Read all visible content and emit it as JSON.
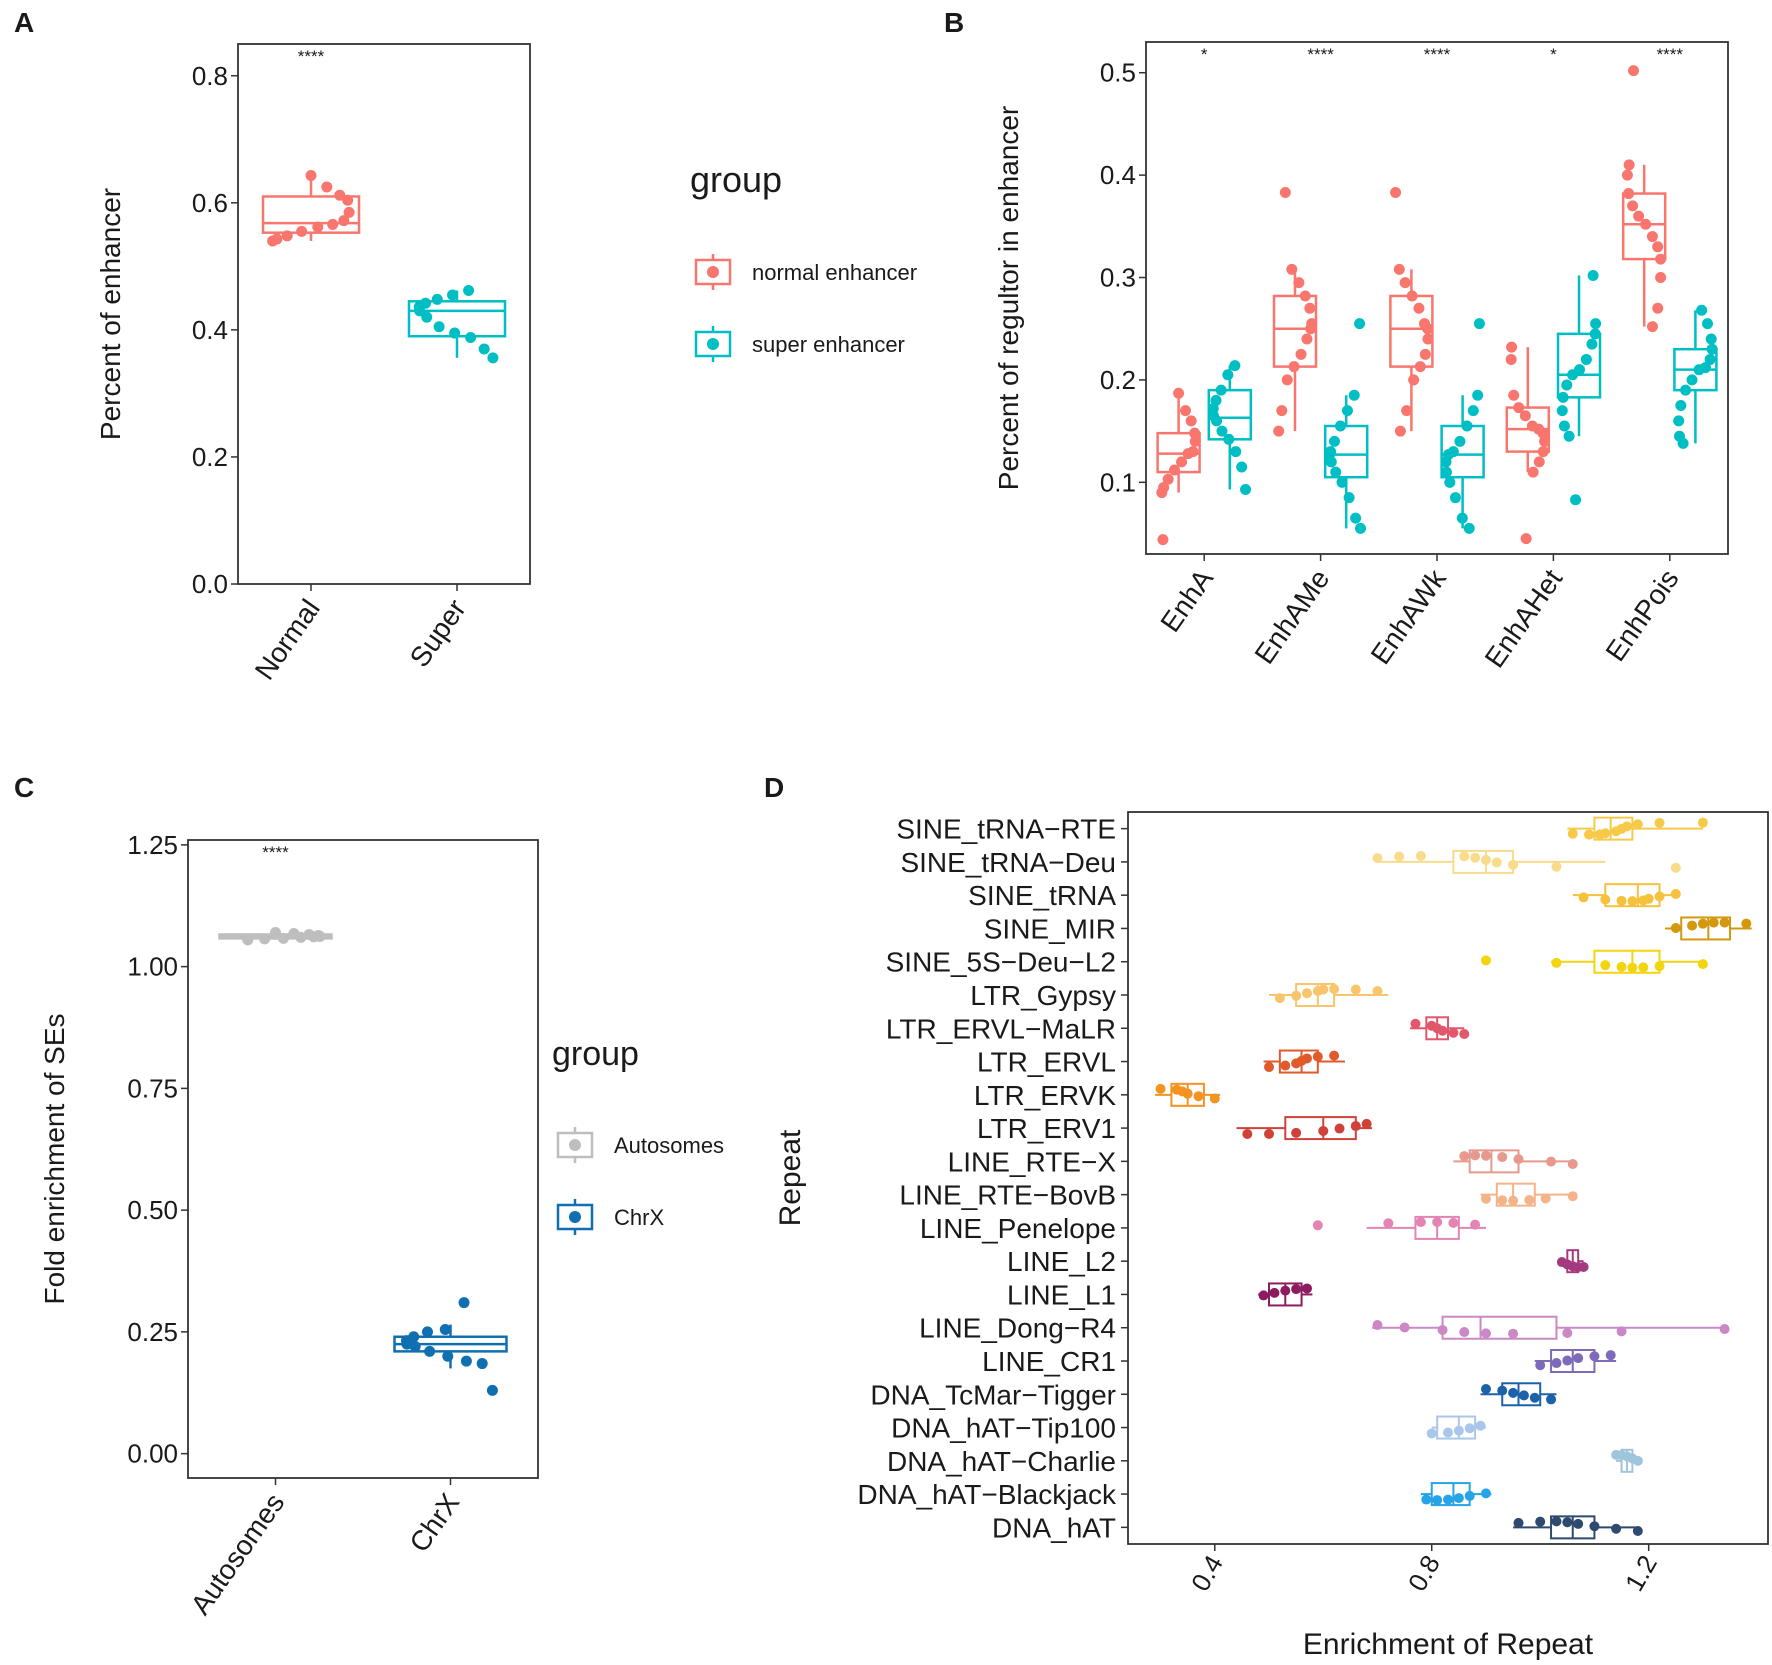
{
  "chart_data": [
    {
      "panel": "A",
      "type": "box",
      "ylabel": "Percent of enhancer",
      "ylim": [
        0,
        0.85
      ],
      "yticks": [
        "0.0",
        "0.2",
        "0.4",
        "0.6",
        "0.8"
      ],
      "ytick_values": [
        0,
        0.2,
        0.4,
        0.6,
        0.8
      ],
      "categories": [
        "Normal",
        "Super"
      ],
      "significance": [
        "****"
      ],
      "legend_title": "group",
      "legend": [
        {
          "label": "normal enhancer",
          "color": "#f8766d"
        },
        {
          "label": "super enhancer",
          "color": "#00bfc4"
        }
      ],
      "boxes": [
        {
          "category": "Normal",
          "group": "normal enhancer",
          "color": "#f8766d",
          "min": 0.54,
          "q1": 0.553,
          "median": 0.568,
          "q3": 0.61,
          "max": 0.643,
          "points": [
            0.643,
            0.625,
            0.612,
            0.604,
            0.585,
            0.572,
            0.566,
            0.562,
            0.555,
            0.548,
            0.543,
            0.54
          ]
        },
        {
          "category": "Super",
          "group": "super enhancer",
          "color": "#00bfc4",
          "min": 0.356,
          "q1": 0.39,
          "median": 0.43,
          "q3": 0.445,
          "max": 0.462,
          "points": [
            0.462,
            0.455,
            0.448,
            0.442,
            0.436,
            0.43,
            0.42,
            0.405,
            0.395,
            0.388,
            0.37,
            0.356
          ]
        }
      ]
    },
    {
      "panel": "B",
      "type": "box",
      "ylabel": "Percent of regultor in enhancer",
      "ylim": [
        0.03,
        0.53
      ],
      "yticks": [
        "0.1",
        "0.2",
        "0.3",
        "0.4",
        "0.5"
      ],
      "ytick_values": [
        0.1,
        0.2,
        0.3,
        0.4,
        0.5
      ],
      "categories": [
        "EnhA",
        "EnhAMe",
        "EnhAWk",
        "EnhAHet",
        "EnhPois"
      ],
      "significance": [
        "*",
        "****",
        "****",
        "*",
        "****"
      ],
      "boxes": [
        {
          "category": "EnhA",
          "group": "normal enhancer",
          "color": "#f8766d",
          "min": 0.09,
          "q1": 0.11,
          "median": 0.128,
          "q3": 0.148,
          "max": 0.187,
          "points": [
            0.187,
            0.17,
            0.16,
            0.148,
            0.14,
            0.13,
            0.128,
            0.12,
            0.112,
            0.103,
            0.095,
            0.09,
            0.044
          ]
        },
        {
          "category": "EnhA",
          "group": "super enhancer",
          "color": "#00bfc4",
          "min": 0.093,
          "q1": 0.142,
          "median": 0.163,
          "q3": 0.19,
          "max": 0.214,
          "points": [
            0.214,
            0.205,
            0.19,
            0.18,
            0.172,
            0.165,
            0.16,
            0.15,
            0.142,
            0.13,
            0.115,
            0.093
          ]
        },
        {
          "category": "EnhAMe",
          "group": "normal enhancer",
          "color": "#f8766d",
          "min": 0.15,
          "q1": 0.213,
          "median": 0.25,
          "q3": 0.282,
          "max": 0.308,
          "points": [
            0.383,
            0.308,
            0.295,
            0.282,
            0.27,
            0.255,
            0.25,
            0.24,
            0.225,
            0.213,
            0.2,
            0.17,
            0.15
          ]
        },
        {
          "category": "EnhAMe",
          "group": "super enhancer",
          "color": "#00bfc4",
          "min": 0.055,
          "q1": 0.105,
          "median": 0.127,
          "q3": 0.155,
          "max": 0.185,
          "points": [
            0.255,
            0.185,
            0.17,
            0.155,
            0.14,
            0.13,
            0.127,
            0.12,
            0.11,
            0.1,
            0.085,
            0.065,
            0.055
          ]
        },
        {
          "category": "EnhAWk",
          "group": "normal enhancer",
          "color": "#f8766d",
          "min": 0.15,
          "q1": 0.213,
          "median": 0.25,
          "q3": 0.282,
          "max": 0.308,
          "points": [
            0.383,
            0.308,
            0.295,
            0.282,
            0.27,
            0.255,
            0.25,
            0.24,
            0.225,
            0.213,
            0.2,
            0.17,
            0.15
          ]
        },
        {
          "category": "EnhAWk",
          "group": "super enhancer",
          "color": "#00bfc4",
          "min": 0.055,
          "q1": 0.105,
          "median": 0.127,
          "q3": 0.155,
          "max": 0.185,
          "points": [
            0.255,
            0.185,
            0.17,
            0.155,
            0.14,
            0.13,
            0.127,
            0.12,
            0.11,
            0.1,
            0.085,
            0.065,
            0.055
          ]
        },
        {
          "category": "EnhAHet",
          "group": "normal enhancer",
          "color": "#f8766d",
          "min": 0.11,
          "q1": 0.13,
          "median": 0.152,
          "q3": 0.173,
          "max": 0.232,
          "points": [
            0.232,
            0.22,
            0.185,
            0.173,
            0.165,
            0.155,
            0.152,
            0.148,
            0.14,
            0.13,
            0.12,
            0.11,
            0.045
          ]
        },
        {
          "category": "EnhAHet",
          "group": "super enhancer",
          "color": "#00bfc4",
          "min": 0.145,
          "q1": 0.183,
          "median": 0.205,
          "q3": 0.245,
          "max": 0.302,
          "points": [
            0.302,
            0.255,
            0.245,
            0.235,
            0.22,
            0.21,
            0.205,
            0.195,
            0.183,
            0.17,
            0.155,
            0.145,
            0.083
          ]
        },
        {
          "category": "EnhPois",
          "group": "normal enhancer",
          "color": "#f8766d",
          "min": 0.252,
          "q1": 0.318,
          "median": 0.352,
          "q3": 0.382,
          "max": 0.41,
          "points": [
            0.502,
            0.41,
            0.4,
            0.382,
            0.37,
            0.36,
            0.352,
            0.34,
            0.33,
            0.318,
            0.3,
            0.27,
            0.252
          ]
        },
        {
          "category": "EnhPois",
          "group": "super enhancer",
          "color": "#00bfc4",
          "min": 0.138,
          "q1": 0.19,
          "median": 0.21,
          "q3": 0.23,
          "max": 0.268,
          "points": [
            0.268,
            0.255,
            0.24,
            0.23,
            0.22,
            0.212,
            0.21,
            0.2,
            0.19,
            0.175,
            0.16,
            0.145,
            0.138
          ]
        }
      ]
    },
    {
      "panel": "C",
      "type": "box",
      "ylabel": "Fold enrichment of SEs",
      "ylim": [
        -0.05,
        1.26
      ],
      "yticks": [
        "0.00",
        "0.25",
        "0.50",
        "0.75",
        "1.00",
        "1.25"
      ],
      "ytick_values": [
        0,
        0.25,
        0.5,
        0.75,
        1.0,
        1.25
      ],
      "categories": [
        "Autosomes",
        "ChrX"
      ],
      "significance": [
        "****"
      ],
      "legend_title": "group",
      "legend": [
        {
          "label": "Autosomes",
          "color": "#bebebe"
        },
        {
          "label": "ChrX",
          "color": "#0f6fb0"
        }
      ],
      "boxes": [
        {
          "category": "Autosomes",
          "group": "Autosomes",
          "color": "#bebebe",
          "min": 1.055,
          "q1": 1.058,
          "median": 1.062,
          "q3": 1.066,
          "max": 1.07,
          "points": [
            1.07,
            1.068,
            1.066,
            1.064,
            1.062,
            1.061,
            1.06,
            1.058,
            1.057,
            1.055
          ]
        },
        {
          "category": "ChrX",
          "group": "ChrX",
          "color": "#0f6fb0",
          "min": 0.175,
          "q1": 0.21,
          "median": 0.225,
          "q3": 0.24,
          "max": 0.265,
          "points": [
            0.31,
            0.255,
            0.25,
            0.24,
            0.232,
            0.225,
            0.22,
            0.21,
            0.2,
            0.19,
            0.185,
            0.13
          ]
        }
      ]
    },
    {
      "panel": "D",
      "type": "box",
      "orientation": "horizontal",
      "xlabel": "Enrichment of Repeat",
      "ylabel": "Repeat",
      "xlim": [
        0.24,
        1.42
      ],
      "xticks": [
        "0.4",
        "0.8",
        "1.2"
      ],
      "xtick_values": [
        0.4,
        0.8,
        1.2
      ],
      "boxes": [
        {
          "category": "SINE_tRNA−RTE",
          "color": "#f7c948",
          "min": 1.05,
          "q1": 1.1,
          "median": 1.13,
          "q3": 1.17,
          "max": 1.3,
          "points": [
            1.06,
            1.09,
            1.11,
            1.12,
            1.14,
            1.15,
            1.16,
            1.18,
            1.22,
            1.3
          ]
        },
        {
          "category": "SINE_tRNA−Deu",
          "color": "#f8dc8c",
          "min": 0.7,
          "q1": 0.84,
          "median": 0.9,
          "q3": 0.95,
          "max": 1.12,
          "points": [
            0.7,
            0.74,
            0.78,
            0.86,
            0.88,
            0.9,
            0.92,
            0.95,
            1.03,
            1.25
          ]
        },
        {
          "category": "SINE_tRNA",
          "color": "#f6c13c",
          "min": 1.06,
          "q1": 1.12,
          "median": 1.18,
          "q3": 1.22,
          "max": 1.25,
          "points": [
            1.08,
            1.12,
            1.15,
            1.17,
            1.19,
            1.2,
            1.22,
            1.25
          ]
        },
        {
          "category": "SINE_MIR",
          "color": "#d4980e",
          "min": 1.23,
          "q1": 1.26,
          "median": 1.31,
          "q3": 1.35,
          "max": 1.39,
          "points": [
            1.25,
            1.28,
            1.3,
            1.32,
            1.34,
            1.38
          ]
        },
        {
          "category": "SINE_5S−Deu−L2",
          "color": "#f2d40f",
          "min": 1.02,
          "q1": 1.1,
          "median": 1.17,
          "q3": 1.22,
          "max": 1.3,
          "points": [
            0.9,
            1.03,
            1.12,
            1.15,
            1.17,
            1.19,
            1.22,
            1.3
          ]
        },
        {
          "category": "LTR_Gypsy",
          "color": "#f8c56c",
          "min": 0.5,
          "q1": 0.55,
          "median": 0.59,
          "q3": 0.62,
          "max": 0.72,
          "points": [
            0.52,
            0.55,
            0.57,
            0.59,
            0.6,
            0.62,
            0.66,
            0.7
          ]
        },
        {
          "category": "LTR_ERVL−MaLR",
          "color": "#e2576b",
          "min": 0.76,
          "q1": 0.79,
          "median": 0.81,
          "q3": 0.83,
          "max": 0.86,
          "points": [
            0.77,
            0.8,
            0.81,
            0.82,
            0.84,
            0.86
          ]
        },
        {
          "category": "LTR_ERVL",
          "color": "#e05a2b",
          "min": 0.49,
          "q1": 0.52,
          "median": 0.56,
          "q3": 0.59,
          "max": 0.64,
          "points": [
            0.5,
            0.53,
            0.55,
            0.56,
            0.57,
            0.59,
            0.62
          ]
        },
        {
          "category": "LTR_ERVK",
          "color": "#f39321",
          "min": 0.29,
          "q1": 0.32,
          "median": 0.35,
          "q3": 0.38,
          "max": 0.41,
          "points": [
            0.3,
            0.33,
            0.34,
            0.35,
            0.37,
            0.4
          ]
        },
        {
          "category": "LTR_ERV1",
          "color": "#d0413a",
          "min": 0.44,
          "q1": 0.53,
          "median": 0.6,
          "q3": 0.66,
          "max": 0.69,
          "points": [
            0.46,
            0.5,
            0.55,
            0.6,
            0.63,
            0.66,
            0.68
          ]
        },
        {
          "category": "LINE_RTE−X",
          "color": "#e7998e",
          "min": 0.84,
          "q1": 0.87,
          "median": 0.91,
          "q3": 0.96,
          "max": 1.06,
          "points": [
            0.86,
            0.88,
            0.9,
            0.93,
            0.96,
            1.02,
            1.06
          ]
        },
        {
          "category": "LINE_RTE−BovB",
          "color": "#f5b38a",
          "min": 0.89,
          "q1": 0.92,
          "median": 0.95,
          "q3": 0.99,
          "max": 1.06,
          "points": [
            0.9,
            0.93,
            0.95,
            0.98,
            1.01,
            1.06
          ]
        },
        {
          "category": "LINE_Penelope",
          "color": "#e384b3",
          "min": 0.68,
          "q1": 0.77,
          "median": 0.81,
          "q3": 0.85,
          "max": 0.9,
          "points": [
            0.59,
            0.72,
            0.78,
            0.81,
            0.84,
            0.88
          ]
        },
        {
          "category": "LINE_L2",
          "color": "#a33a7d",
          "min": 1.04,
          "q1": 1.05,
          "median": 1.06,
          "q3": 1.07,
          "max": 1.08,
          "points": [
            1.04,
            1.05,
            1.06,
            1.07,
            1.08
          ]
        },
        {
          "category": "LINE_L1",
          "color": "#8c1c5e",
          "min": 0.48,
          "q1": 0.5,
          "median": 0.53,
          "q3": 0.56,
          "max": 0.58,
          "points": [
            0.49,
            0.51,
            0.53,
            0.55,
            0.57
          ]
        },
        {
          "category": "LINE_Dong−R4",
          "color": "#cc88c4",
          "min": 0.69,
          "q1": 0.82,
          "median": 0.89,
          "q3": 1.03,
          "max": 1.34,
          "points": [
            0.7,
            0.75,
            0.82,
            0.86,
            0.9,
            0.95,
            1.05,
            1.15,
            1.34
          ]
        },
        {
          "category": "LINE_CR1",
          "color": "#7e6ab8",
          "min": 0.99,
          "q1": 1.02,
          "median": 1.06,
          "q3": 1.1,
          "max": 1.14,
          "points": [
            1.0,
            1.03,
            1.05,
            1.07,
            1.1,
            1.13
          ]
        },
        {
          "category": "DNA_TcMar−Tigger",
          "color": "#1b62a8",
          "min": 0.89,
          "q1": 0.93,
          "median": 0.96,
          "q3": 1.0,
          "max": 1.03,
          "points": [
            0.9,
            0.93,
            0.95,
            0.97,
            0.99,
            1.02
          ]
        },
        {
          "category": "DNA_hAT−Tip100",
          "color": "#a9c7ea",
          "min": 0.8,
          "q1": 0.81,
          "median": 0.85,
          "q3": 0.88,
          "max": 0.9,
          "points": [
            0.8,
            0.83,
            0.85,
            0.87,
            0.89
          ]
        },
        {
          "category": "DNA_hAT−Charlie",
          "color": "#9fc5dc",
          "min": 1.14,
          "q1": 1.15,
          "median": 1.16,
          "q3": 1.17,
          "max": 1.18,
          "points": [
            1.14,
            1.15,
            1.16,
            1.17,
            1.18
          ]
        },
        {
          "category": "DNA_hAT−Blackjack",
          "color": "#27a3e7",
          "min": 0.78,
          "q1": 0.8,
          "median": 0.84,
          "q3": 0.87,
          "max": 0.91,
          "points": [
            0.79,
            0.81,
            0.83,
            0.85,
            0.87,
            0.9
          ]
        },
        {
          "category": "DNA_hAT",
          "color": "#2e4a6e",
          "min": 0.95,
          "q1": 1.02,
          "median": 1.06,
          "q3": 1.1,
          "max": 1.18,
          "points": [
            0.96,
            1.0,
            1.03,
            1.05,
            1.07,
            1.1,
            1.14,
            1.18
          ]
        }
      ]
    }
  ],
  "panels": {
    "a": {
      "label": "A"
    },
    "b": {
      "label": "B"
    },
    "c": {
      "label": "C"
    },
    "d": {
      "label": "D"
    }
  }
}
